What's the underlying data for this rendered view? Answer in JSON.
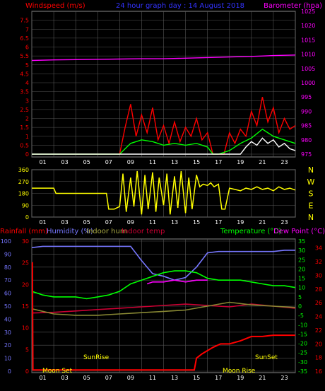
{
  "chart_data": [
    {
      "type": "line",
      "title": "24 hour graph day : 14 August 2018",
      "left_axis_label": "Windspeed (m/s)",
      "right_axis_label": "Barometer (hpa)",
      "x_ticks": [
        "01",
        "03",
        "05",
        "07",
        "09",
        "11",
        "13",
        "15",
        "17",
        "19",
        "21",
        "23"
      ],
      "y_left_ticks": [
        "0",
        "0.5",
        "1",
        "1.5",
        "2",
        "2.5",
        "3",
        "3.5",
        "4",
        "4.5",
        "5",
        "5.5",
        "6",
        "6.5",
        "7",
        "7.5"
      ],
      "y_left_range": [
        0,
        8
      ],
      "y_right_ticks": [
        "975",
        "980",
        "985",
        "990",
        "995",
        "1000",
        "1005",
        "1010",
        "1015",
        "1020",
        "1025"
      ],
      "y_right_range": [
        975,
        1025
      ],
      "series": [
        {
          "name": "Barometer (hpa)",
          "color": "#ff00ff",
          "x": [
            0,
            2,
            4,
            6,
            8,
            10,
            12,
            14,
            16,
            18,
            20,
            22,
            24
          ],
          "values": [
            1007.8,
            1008.0,
            1008.1,
            1008.2,
            1008.3,
            1008.4,
            1008.4,
            1008.6,
            1008.8,
            1009.0,
            1009.2,
            1009.5,
            1009.7
          ]
        },
        {
          "name": "Windspeed (m/s)",
          "color": "#ff0000",
          "x": [
            0,
            8,
            8.5,
            9,
            9.5,
            10,
            10.5,
            11,
            11.5,
            12,
            12.5,
            13,
            13.5,
            14,
            14.5,
            15,
            15.5,
            16,
            16.5,
            17,
            17.5,
            18,
            18.5,
            19,
            19.5,
            20,
            20.5,
            21,
            21.5,
            22,
            22.5,
            23,
            23.5,
            24
          ],
          "values": [
            0,
            0,
            1.5,
            2.8,
            1.0,
            2.2,
            1.2,
            2.6,
            0.8,
            1.6,
            0.6,
            1.8,
            0.7,
            1.5,
            1.0,
            2.0,
            0.8,
            1.2,
            0,
            0,
            0,
            1.2,
            0.6,
            1.4,
            1.0,
            2.4,
            1.6,
            3.2,
            1.8,
            2.6,
            1.2,
            2.0,
            1.4,
            1.6
          ]
        },
        {
          "name": "Wind average",
          "color": "#00ff00",
          "x": [
            0,
            8,
            8.5,
            9,
            10,
            11,
            12,
            13,
            14,
            15,
            16,
            16.5,
            17,
            18,
            18.5,
            19,
            20,
            21,
            22,
            23,
            24
          ],
          "values": [
            0,
            0,
            0.3,
            0.6,
            0.8,
            0.7,
            0.5,
            0.6,
            0.5,
            0.6,
            0.4,
            0,
            0,
            0.2,
            0.4,
            0.6,
            0.9,
            1.4,
            1.0,
            0.8,
            0.6
          ]
        },
        {
          "name": "Wind gust",
          "color": "#ffffff",
          "x": [
            0,
            19,
            19.5,
            20,
            20.5,
            21,
            21.5,
            22,
            22.5,
            23,
            23.5,
            24
          ],
          "values": [
            0,
            0,
            0.4,
            0.7,
            0.5,
            0.9,
            0.6,
            0.8,
            0.4,
            0.6,
            0.3,
            0.2
          ]
        }
      ]
    },
    {
      "type": "scatter",
      "title": "",
      "x_ticks": [
        "01",
        "03",
        "05",
        "07",
        "09",
        "11",
        "13",
        "15",
        "17",
        "19",
        "21",
        "23"
      ],
      "y_left_ticks": [
        "0",
        "90",
        "180",
        "270",
        "360"
      ],
      "y_left_range": [
        0,
        360
      ],
      "right_labels": [
        "N",
        "W",
        "S",
        "E",
        "N"
      ],
      "series": [
        {
          "name": "Wind direction",
          "color": "#ffff00",
          "x": [
            0,
            2,
            2.2,
            4,
            6,
            6.8,
            7.0,
            7.5,
            8,
            8.3,
            8.6,
            9,
            9.3,
            9.6,
            10,
            10.3,
            10.6,
            11,
            11.3,
            11.6,
            12,
            12.3,
            12.6,
            13,
            13.3,
            13.6,
            14,
            14.3,
            14.6,
            15,
            15.3,
            15.6,
            16,
            16.3,
            16.6,
            17,
            17.3,
            17.6,
            18,
            18.5,
            19,
            19.5,
            20,
            20.5,
            21,
            21.5,
            22,
            22.5,
            23,
            23.5,
            24
          ],
          "values": [
            220,
            220,
            180,
            180,
            180,
            180,
            60,
            60,
            80,
            330,
            40,
            300,
            80,
            350,
            20,
            320,
            60,
            340,
            40,
            300,
            90,
            330,
            20,
            310,
            70,
            350,
            30,
            300,
            60,
            320,
            230,
            250,
            240,
            260,
            230,
            250,
            60,
            60,
            220,
            210,
            200,
            220,
            210,
            230,
            210,
            220,
            200,
            230,
            210,
            220,
            205
          ]
        }
      ]
    },
    {
      "type": "line",
      "title": "",
      "top_labels": [
        "Rainfall (mm)",
        "Humidity (%)",
        "Indoor hum",
        "Indoor temp",
        "Temperature (°C)",
        "Dew Point (°C)"
      ],
      "x_ticks": [
        "01",
        "03",
        "05",
        "07",
        "09",
        "11",
        "13",
        "15",
        "17",
        "19",
        "21",
        "23"
      ],
      "y_hum_ticks": [
        "0",
        "10",
        "20",
        "30",
        "40",
        "50",
        "60",
        "70",
        "80",
        "90",
        "100"
      ],
      "y_hum_range": [
        0,
        100
      ],
      "y_rain_ticks": [
        "0",
        "5",
        "10",
        "15",
        "20",
        "25",
        "30"
      ],
      "y_rain_range": [
        0,
        30
      ],
      "y_temp_ticks": [
        "-35",
        "-30",
        "-25",
        "-20",
        "-15",
        "-10",
        "-5",
        "0",
        "5",
        "10",
        "15",
        "20",
        "25",
        "30",
        "35"
      ],
      "y_temp_range": [
        -35,
        35
      ],
      "y_indoor_ticks": [
        "16",
        "18",
        "20",
        "22",
        "24",
        "26",
        "28",
        "30",
        "32",
        "34"
      ],
      "y_indoor_range": [
        16,
        35
      ],
      "annotations": [
        "Moon Set",
        "SunRise",
        "Moon Rise",
        "SunSet"
      ],
      "series": [
        {
          "name": "Humidity (%)",
          "color": "#7777ff",
          "axis": "hum",
          "x": [
            0,
            1,
            3,
            5,
            7,
            8,
            9,
            10,
            11,
            12,
            13,
            14,
            15,
            16,
            17,
            18,
            19,
            20,
            21,
            22,
            23,
            24
          ],
          "values": [
            95,
            96,
            96,
            96,
            96,
            96,
            96,
            85,
            75,
            73,
            70,
            72,
            80,
            91,
            92,
            92,
            92,
            92,
            92,
            92,
            93,
            93
          ]
        },
        {
          "name": "Temperature (°C)",
          "color": "#00ff00",
          "axis": "temp",
          "x": [
            0,
            1,
            2,
            3,
            4,
            5,
            6,
            7,
            8,
            9,
            10,
            11,
            12,
            13,
            14,
            15,
            16,
            17,
            18,
            19,
            20,
            21,
            22,
            23,
            24
          ],
          "values": [
            8,
            6,
            5,
            5,
            5,
            4,
            5,
            6,
            8,
            12,
            14,
            16,
            18,
            19,
            19,
            18,
            15,
            14,
            14,
            14,
            13,
            12,
            11,
            11,
            10
          ]
        },
        {
          "name": "Dew Point (°C)",
          "color": "#ff00ff",
          "axis": "temp",
          "x": [
            10.5,
            11,
            12,
            13,
            14,
            15,
            16
          ],
          "values": [
            12,
            13,
            13,
            14,
            13,
            14,
            14
          ]
        },
        {
          "name": "Indoor temp",
          "color": "#cc0033",
          "axis": "indoor",
          "x": [
            0,
            2,
            4,
            6,
            8,
            10,
            12,
            14,
            16,
            18,
            20,
            22,
            24
          ],
          "values": [
            24.5,
            24.6,
            24.8,
            25.0,
            25.2,
            25.4,
            25.6,
            25.8,
            25.6,
            25.4,
            25.8,
            25.5,
            25.2
          ]
        },
        {
          "name": "Indoor hum",
          "color": "#888833",
          "axis": "hum",
          "x": [
            0,
            2,
            4,
            6,
            8,
            10,
            12,
            14,
            16,
            18,
            20,
            22,
            24
          ],
          "values": [
            48,
            44,
            43,
            43,
            44,
            45,
            46,
            47,
            50,
            53,
            51,
            50,
            49
          ]
        },
        {
          "name": "Rainfall (mm)",
          "color": "#ff0000",
          "axis": "rain",
          "x": [
            0,
            0.05,
            0.1,
            5,
            10,
            14.8,
            15,
            15.5,
            16.5,
            17.2,
            18,
            19,
            20,
            21,
            22,
            23,
            24
          ],
          "values": [
            25,
            25,
            0.3,
            0.3,
            0.3,
            0.3,
            3,
            4,
            5.5,
            6.3,
            6.3,
            7,
            8,
            8,
            8.3,
            8.3,
            8.3
          ]
        }
      ]
    }
  ]
}
